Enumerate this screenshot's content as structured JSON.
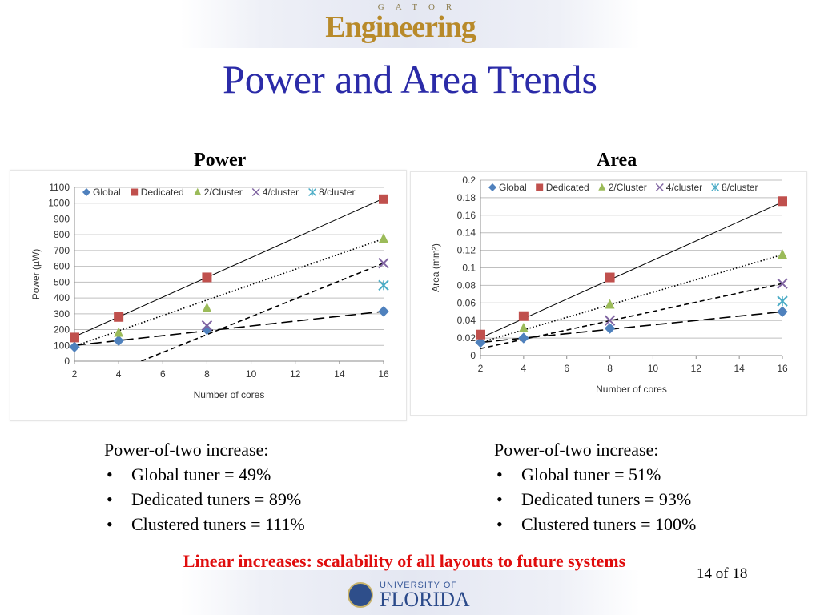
{
  "header": {
    "logo_top_small": "GATOR",
    "logo_top_main": "Engineering",
    "title": "Power and Area Trends"
  },
  "colors": {
    "title": "#2b2ba8",
    "global": "#4f81bd",
    "dedicated": "#c0504d",
    "cluster2": "#9bbb59",
    "cluster4": "#8064a2",
    "cluster8": "#4bacc6",
    "highlight": "#e00d0d"
  },
  "power_section": {
    "heading": "Power",
    "notes_title": "Power-of-two increase:",
    "bullets": [
      "Global tuner = 49%",
      "Dedicated tuners = 89%",
      "Clustered tuners = 111%"
    ]
  },
  "area_section": {
    "heading": "Area",
    "notes_title": "Power-of-two increase:",
    "bullets": [
      "Global tuner = 51%",
      "Dedicated tuners = 93%",
      "Clustered tuners = 100%"
    ]
  },
  "footer": {
    "message": "Linear increases: scalability of all layouts to future systems",
    "page_number": "14 of 18",
    "logo_bottom_small": "UNIVERSITY OF",
    "logo_bottom_main": "FLORIDA"
  },
  "chart_data": [
    {
      "type": "scatter",
      "title": "Power",
      "xlabel": "Number of cores",
      "ylabel": "Power (µW)",
      "x": [
        2,
        4,
        8,
        16
      ],
      "xlim": [
        2,
        16
      ],
      "ylim": [
        0,
        1100
      ],
      "xticks": [
        2,
        4,
        6,
        8,
        10,
        12,
        14,
        16
      ],
      "yticks": [
        0,
        100,
        200,
        300,
        400,
        500,
        600,
        700,
        800,
        900,
        1000,
        1100
      ],
      "grid": true,
      "legend": "top",
      "series": [
        {
          "name": "Global",
          "marker": "diamond",
          "color": "#4f81bd",
          "values": [
            90,
            130,
            200,
            315
          ]
        },
        {
          "name": "Dedicated",
          "marker": "square",
          "color": "#c0504d",
          "values": [
            150,
            280,
            530,
            1025
          ]
        },
        {
          "name": "2/Cluster",
          "marker": "triangle",
          "color": "#9bbb59",
          "values": [
            null,
            180,
            335,
            775
          ]
        },
        {
          "name": "4/cluster",
          "marker": "x",
          "color": "#8064a2",
          "values": [
            null,
            null,
            225,
            620
          ]
        },
        {
          "name": "8/cluster",
          "marker": "star",
          "color": "#4bacc6",
          "values": [
            null,
            null,
            null,
            480
          ]
        }
      ],
      "trendlines": [
        {
          "series": "Global",
          "style": "longdash",
          "y_at_x2": 100,
          "y_at_x16": 315
        },
        {
          "series": "Dedicated",
          "style": "solid",
          "y_at_x2": 155,
          "y_at_x16": 1030
        },
        {
          "series": "2/Cluster",
          "style": "dotted",
          "y_at_x2": 95,
          "y_at_x16": 775
        },
        {
          "series": "4/cluster",
          "style": "dash",
          "y_at_x2": -170,
          "y_at_x16": 620
        }
      ]
    },
    {
      "type": "scatter",
      "title": "Area",
      "xlabel": "Number of cores",
      "ylabel": "Area (mm²)",
      "x": [
        2,
        4,
        8,
        16
      ],
      "xlim": [
        2,
        16
      ],
      "ylim": [
        0,
        0.2
      ],
      "xticks": [
        2,
        4,
        6,
        8,
        10,
        12,
        14,
        16
      ],
      "yticks": [
        0,
        0.02,
        0.04,
        0.06,
        0.08,
        0.1,
        0.12,
        0.14,
        0.16,
        0.18,
        0.2
      ],
      "grid": true,
      "legend": "top",
      "series": [
        {
          "name": "Global",
          "marker": "diamond",
          "color": "#4f81bd",
          "values": [
            0.015,
            0.02,
            0.031,
            0.05
          ]
        },
        {
          "name": "Dedicated",
          "marker": "square",
          "color": "#c0504d",
          "values": [
            0.024,
            0.045,
            0.089,
            0.176
          ]
        },
        {
          "name": "2/Cluster",
          "marker": "triangle",
          "color": "#9bbb59",
          "values": [
            null,
            0.031,
            0.058,
            0.115
          ]
        },
        {
          "name": "4/cluster",
          "marker": "x",
          "color": "#8064a2",
          "values": [
            null,
            null,
            0.04,
            0.082
          ]
        },
        {
          "name": "8/cluster",
          "marker": "star",
          "color": "#4bacc6",
          "values": [
            null,
            null,
            null,
            0.062
          ]
        }
      ],
      "trendlines": [
        {
          "series": "Global",
          "style": "longdash",
          "y_at_x2": 0.015,
          "y_at_x16": 0.05
        },
        {
          "series": "Dedicated",
          "style": "solid",
          "y_at_x2": 0.02,
          "y_at_x16": 0.175
        },
        {
          "series": "2/Cluster",
          "style": "dotted",
          "y_at_x2": 0.015,
          "y_at_x16": 0.115
        },
        {
          "series": "4/cluster",
          "style": "dash",
          "y_at_x2": 0.008,
          "y_at_x16": 0.082
        }
      ]
    }
  ]
}
